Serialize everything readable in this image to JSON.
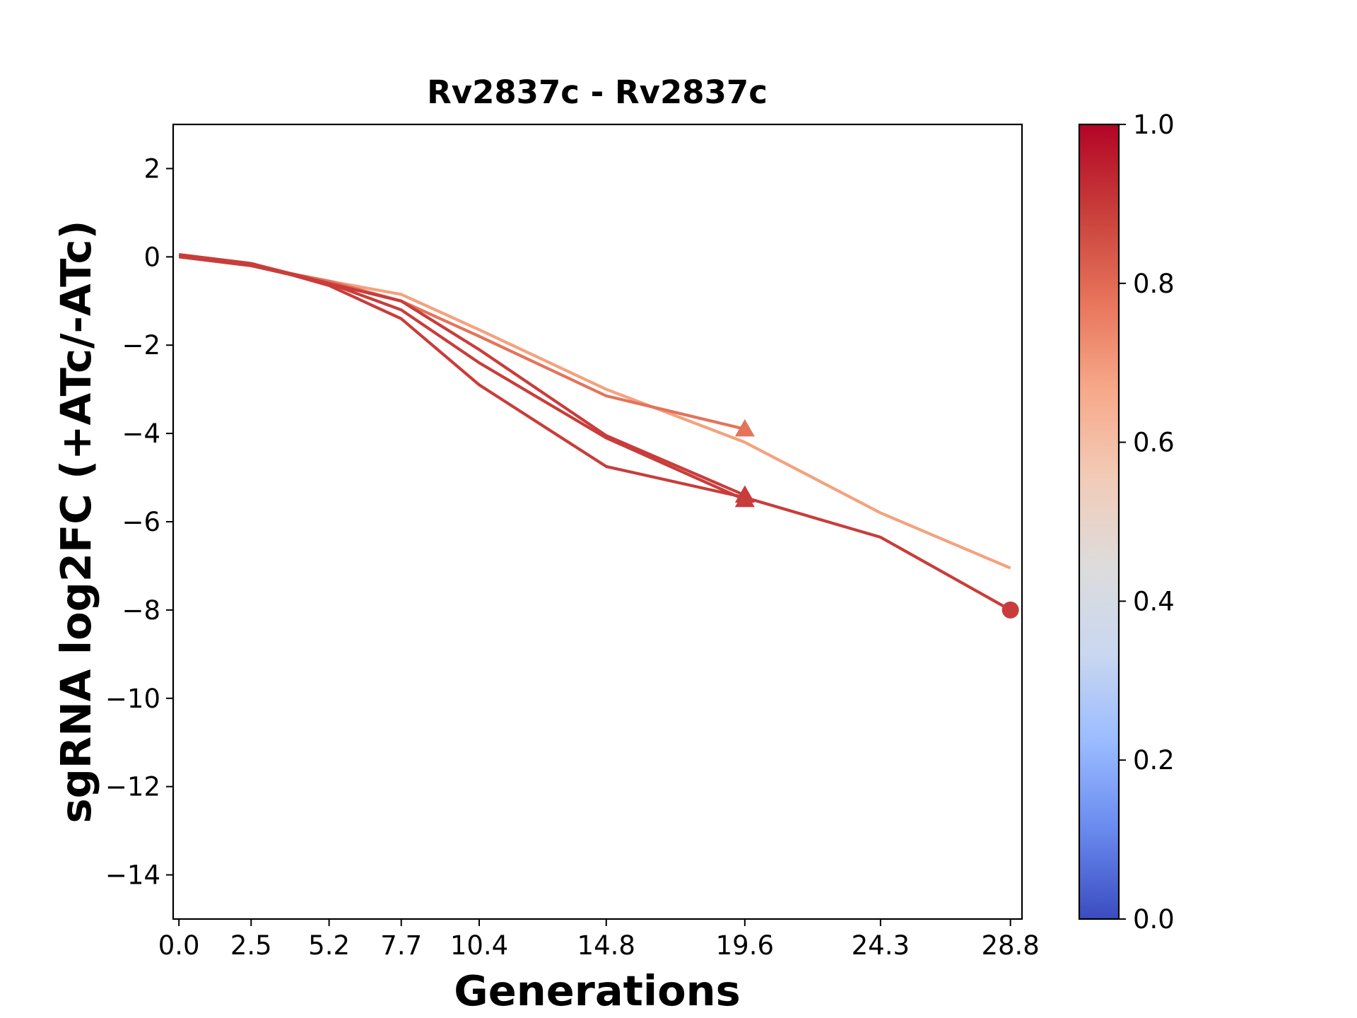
{
  "chart_data": {
    "type": "line",
    "title": "Rv2837c - Rv2837c",
    "xlabel": "Generations",
    "ylabel": "sgRNA log2FC (+ATc/-ATc)",
    "xlim": [
      -0.2,
      29.2
    ],
    "ylim": [
      -15,
      3
    ],
    "x_ticks": [
      0.0,
      2.5,
      5.2,
      7.7,
      10.4,
      14.8,
      19.6,
      24.3,
      28.8
    ],
    "x_tick_labels": [
      "0.0",
      "2.5",
      "5.2",
      "7.7",
      "10.4",
      "14.8",
      "19.6",
      "24.3",
      "28.8"
    ],
    "y_ticks": [
      2,
      0,
      -2,
      -4,
      -6,
      -8,
      -10,
      -12,
      -14
    ],
    "y_tick_labels": [
      "2",
      "0",
      "−2",
      "−4",
      "−6",
      "−8",
      "−10",
      "−12",
      "−14"
    ],
    "grid": false,
    "colorbar": {
      "range": [
        0.0,
        1.0
      ],
      "ticks": [
        0.0,
        0.2,
        0.4,
        0.6,
        0.8,
        1.0
      ],
      "tick_labels": [
        "0.0",
        "0.2",
        "0.4",
        "0.6",
        "0.8",
        "1.0"
      ],
      "colormap": "coolwarm",
      "colors": [
        "#3b4cc0",
        "#6889ee",
        "#9abbff",
        "#c9d7f0",
        "#dddcdc",
        "#f2cbb7",
        "#f7a889",
        "#e7745b",
        "#c83f3a",
        "#b40426"
      ]
    },
    "series": [
      {
        "color_value": 0.74,
        "color": "#f3a27f",
        "x": [
          0.0,
          2.5,
          5.2,
          7.7,
          10.4,
          14.8,
          19.6,
          24.3,
          28.8
        ],
        "y": [
          0.0,
          -0.2,
          -0.55,
          -0.85,
          -1.65,
          -3.0,
          -4.2,
          -5.8,
          -7.05
        ],
        "marker": "none"
      },
      {
        "color_value": 0.85,
        "color": "#e4735b",
        "x": [
          0.0,
          2.5,
          5.2,
          7.7,
          10.4,
          14.8,
          19.6
        ],
        "y": [
          0.0,
          -0.2,
          -0.55,
          -1.0,
          -1.8,
          -3.15,
          -3.9
        ],
        "marker": "triangle"
      },
      {
        "color_value": 0.94,
        "color": "#c83d3b",
        "x": [
          0.0,
          2.5,
          5.2,
          7.7,
          10.4,
          14.8,
          19.6
        ],
        "y": [
          0.05,
          -0.15,
          -0.6,
          -1.0,
          -2.1,
          -4.05,
          -5.4
        ],
        "marker": "triangle"
      },
      {
        "color_value": 0.94,
        "color": "#c83d3b",
        "x": [
          0.0,
          2.5,
          5.2,
          7.7,
          10.4,
          14.8,
          19.6
        ],
        "y": [
          0.0,
          -0.2,
          -0.6,
          -1.2,
          -2.4,
          -4.1,
          -5.5
        ],
        "marker": "triangle"
      },
      {
        "color_value": 0.94,
        "color": "#c83d3b",
        "x": [
          0.0,
          2.5,
          5.2,
          7.7,
          10.4,
          14.8,
          19.6,
          24.3,
          28.8
        ],
        "y": [
          0.05,
          -0.15,
          -0.65,
          -1.4,
          -2.9,
          -4.75,
          -5.45,
          -6.35,
          -8.0
        ],
        "marker": "circle"
      }
    ]
  }
}
